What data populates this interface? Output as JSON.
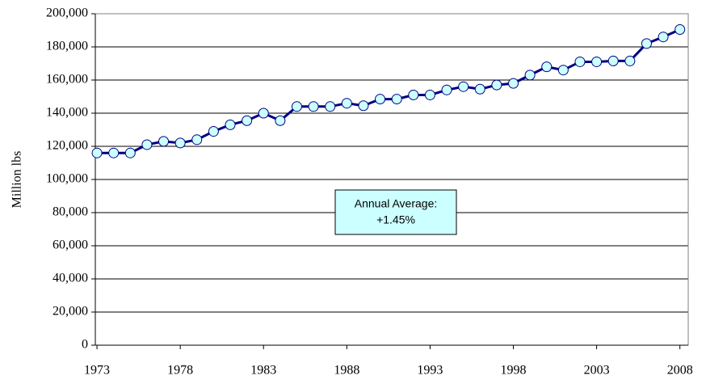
{
  "chart_data": {
    "type": "line",
    "y_label": "Million lbs",
    "annotation": [
      "Annual Average:",
      "+1.45%"
    ],
    "x": [
      1973,
      1974,
      1975,
      1976,
      1977,
      1978,
      1979,
      1980,
      1981,
      1982,
      1983,
      1984,
      1985,
      1986,
      1987,
      1988,
      1989,
      1990,
      1991,
      1992,
      1993,
      1994,
      1995,
      1996,
      1997,
      1998,
      1999,
      2000,
      2001,
      2002,
      2003,
      2004,
      2005,
      2006,
      2007,
      2008
    ],
    "values": [
      116000,
      116000,
      116000,
      121000,
      123000,
      122000,
      124000,
      129000,
      133000,
      135500,
      140000,
      135500,
      144000,
      144000,
      144000,
      146000,
      144500,
      148500,
      148500,
      151000,
      151000,
      154000,
      156000,
      154500,
      157000,
      158000,
      163000,
      168000,
      166000,
      171000,
      171000,
      171500,
      171500,
      182000,
      186000,
      190500
    ],
    "color": "#000080",
    "marker_color": "#ccffff",
    "xlim": [
      1972.9,
      2008.5
    ],
    "xticks": [
      1973,
      1978,
      1983,
      1988,
      1993,
      1998,
      2003,
      2008
    ],
    "ylim": [
      0,
      200000
    ],
    "yticks": [
      0,
      {
        "value": 20000,
        "label": "20,000"
      },
      {
        "value": 40000,
        "label": "40,000"
      },
      {
        "value": 60000,
        "label": "60,000"
      },
      {
        "value": 80000,
        "label": "80,000"
      },
      {
        "value": 100000,
        "label": "100,000"
      },
      {
        "value": 120000,
        "label": "120,000"
      },
      {
        "value": 140000,
        "label": "140,000"
      },
      {
        "value": 160000,
        "label": "160,000"
      },
      {
        "value": 180000,
        "label": "180,000"
      },
      {
        "value": 200000,
        "label": "200,000"
      }
    ],
    "grid": true
  }
}
